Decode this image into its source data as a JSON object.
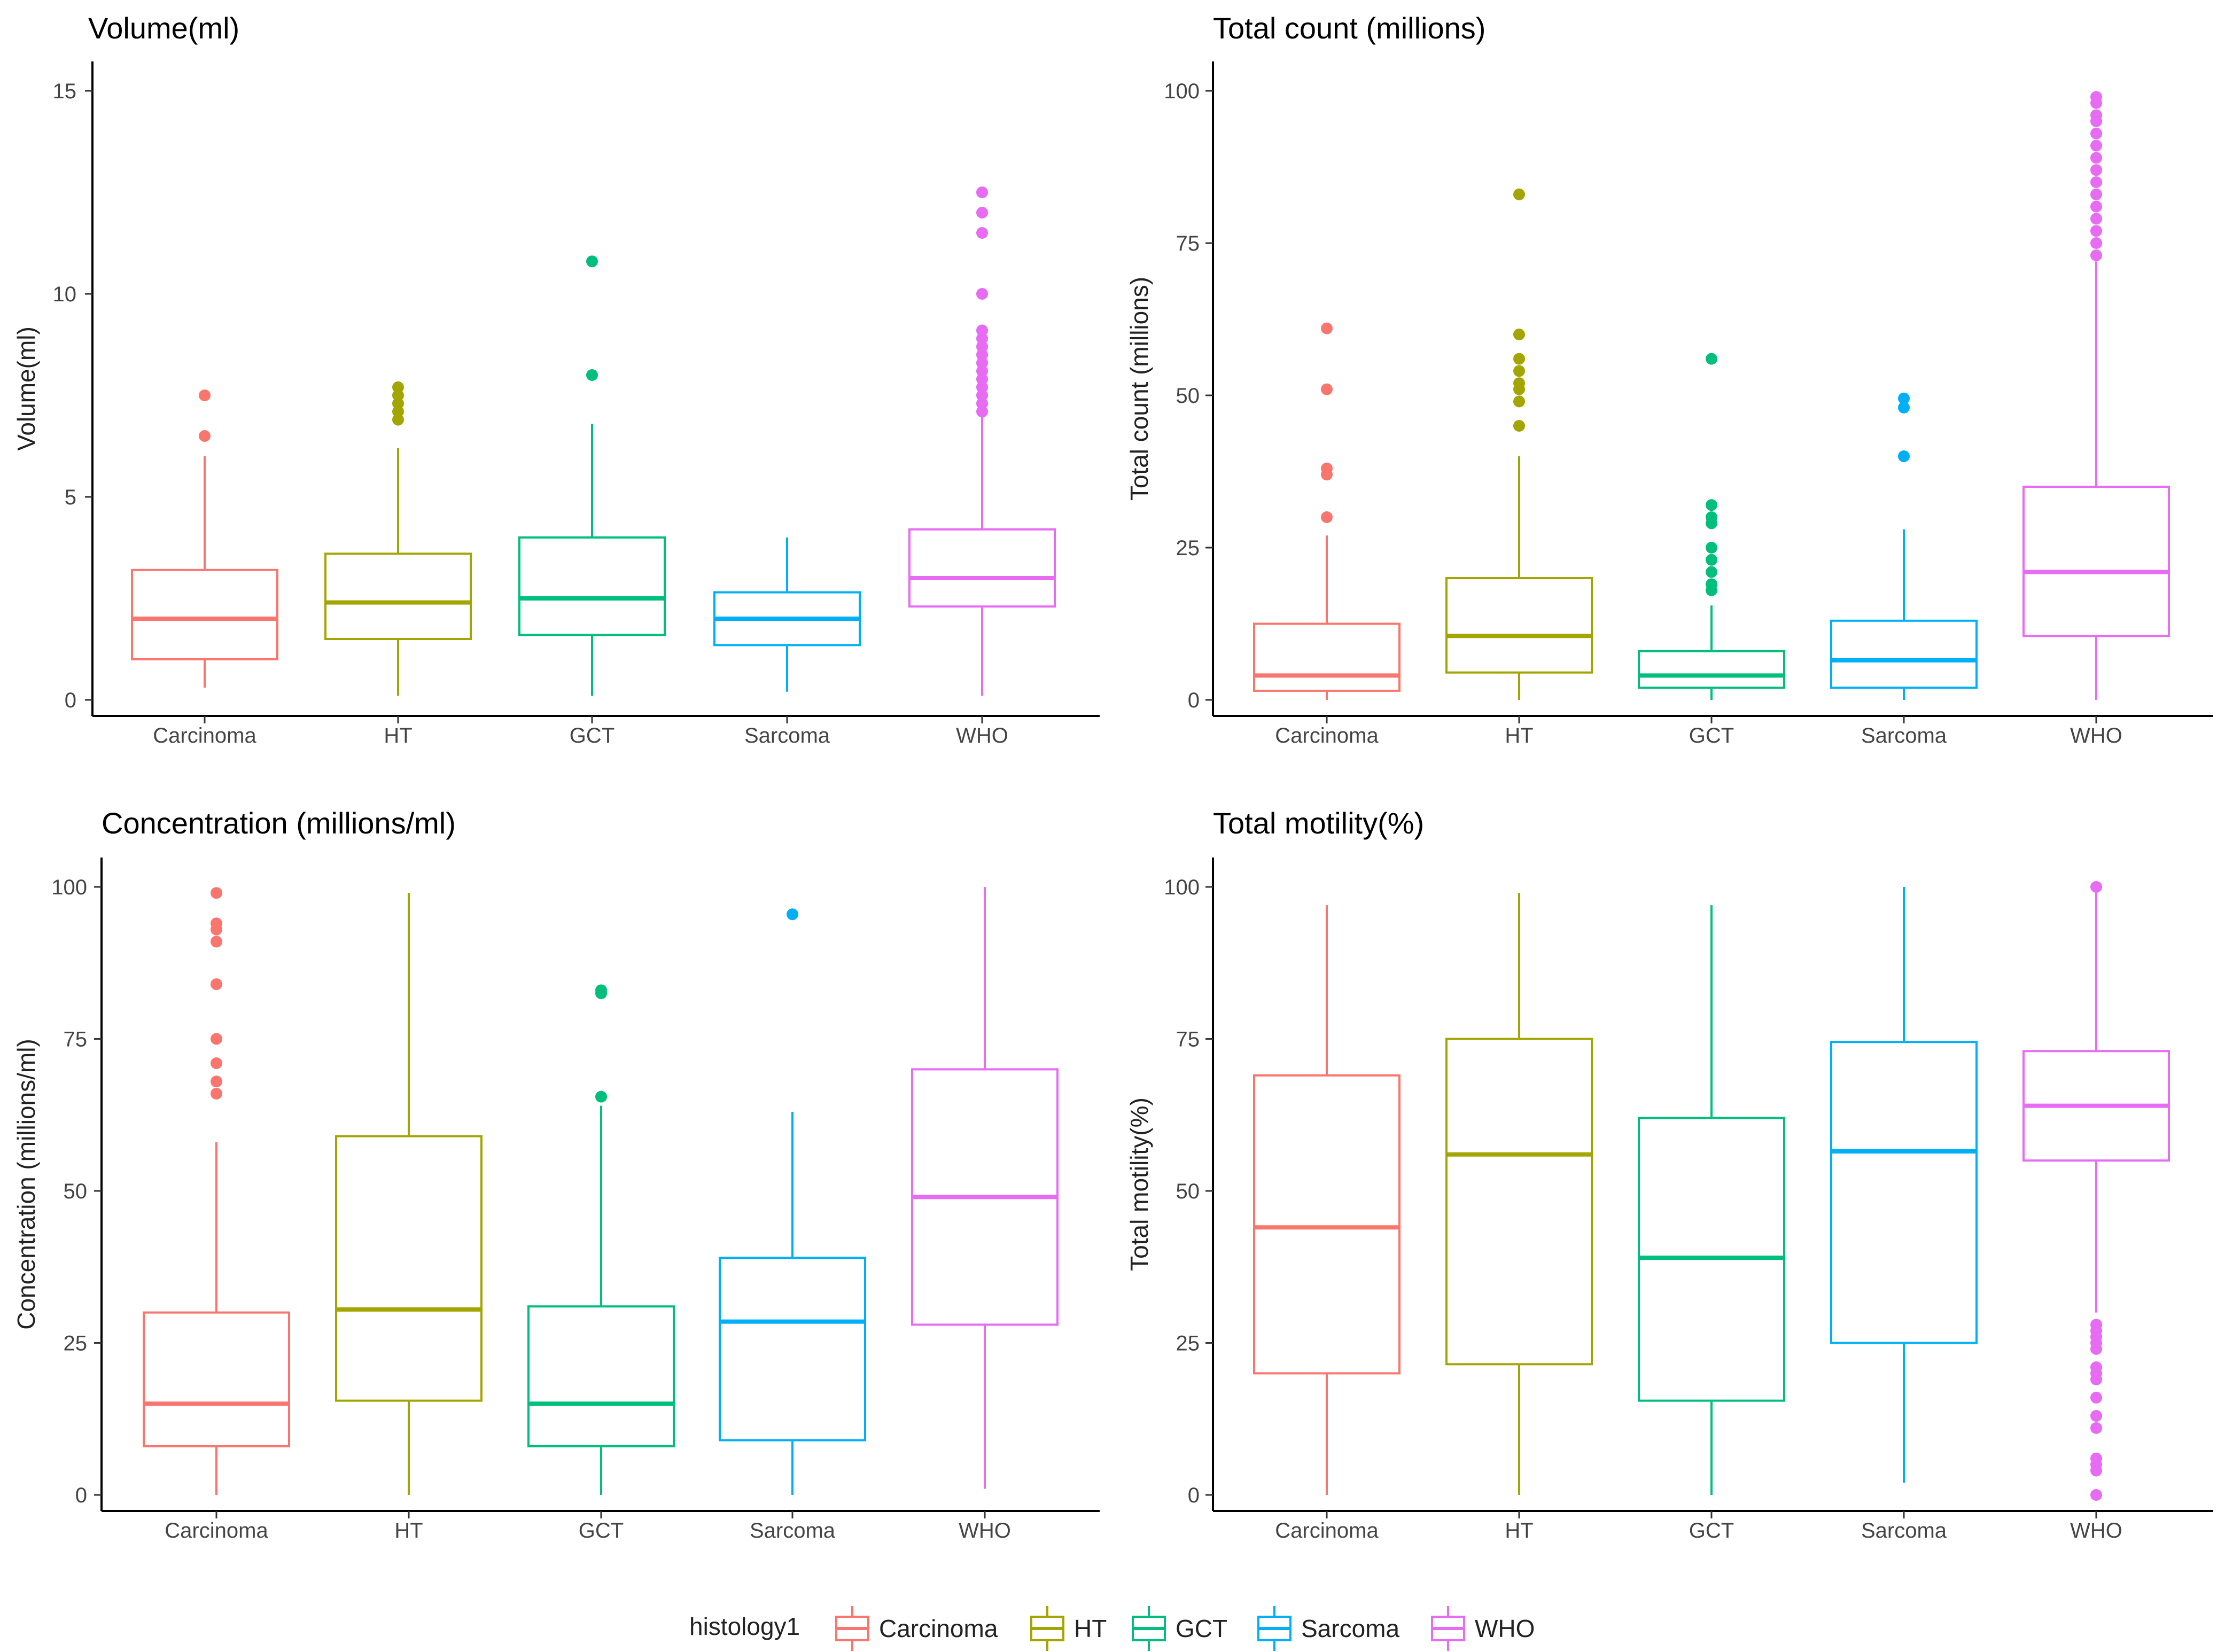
{
  "chart_data": [
    {
      "type": "box",
      "title": "Volume(ml)",
      "ylabel": "Volume(ml)",
      "xlabel": "",
      "ylim": [
        0,
        15.6
      ],
      "yticks": [
        0,
        5,
        10,
        15
      ],
      "categories": [
        "Carcinoma",
        "HT",
        "GCT",
        "Sarcoma",
        "WHO"
      ],
      "boxes": [
        {
          "group": "Carcinoma",
          "low": 0.3,
          "q1": 1.0,
          "median": 2.0,
          "q3": 3.2,
          "high": 6.0,
          "outliers": [
            6.5,
            7.5
          ]
        },
        {
          "group": "HT",
          "low": 0.1,
          "q1": 1.5,
          "median": 2.4,
          "q3": 3.6,
          "high": 6.2,
          "outliers": [
            6.9,
            7.1,
            7.3,
            7.5,
            7.7
          ]
        },
        {
          "group": "GCT",
          "low": 0.1,
          "q1": 1.6,
          "median": 2.5,
          "q3": 4.0,
          "high": 6.8,
          "outliers": [
            8.0,
            10.8
          ]
        },
        {
          "group": "Sarcoma",
          "low": 0.2,
          "q1": 1.35,
          "median": 2.0,
          "q3": 2.65,
          "high": 4.0,
          "outliers": []
        },
        {
          "group": "WHO",
          "low": 0.1,
          "q1": 2.3,
          "median": 3.0,
          "q3": 4.2,
          "high": 7.0,
          "outliers": [
            7.1,
            7.3,
            7.5,
            7.7,
            7.9,
            8.1,
            8.3,
            8.5,
            8.7,
            8.9,
            9.1,
            10.0,
            11.5,
            12.0,
            12.5
          ]
        }
      ]
    },
    {
      "type": "box",
      "title": "Total count (millions)",
      "ylabel": "Total count (millions)",
      "xlabel": "",
      "ylim": [
        0,
        104
      ],
      "yticks": [
        0,
        25,
        50,
        75,
        100
      ],
      "categories": [
        "Carcinoma",
        "HT",
        "GCT",
        "Sarcoma",
        "WHO"
      ],
      "boxes": [
        {
          "group": "Carcinoma",
          "low": 0,
          "q1": 1.5,
          "median": 4,
          "q3": 12.5,
          "high": 27,
          "outliers": [
            30,
            37,
            38,
            51,
            61
          ]
        },
        {
          "group": "HT",
          "low": 0,
          "q1": 4.5,
          "median": 10.5,
          "q3": 20,
          "high": 40,
          "outliers": [
            45,
            49,
            51,
            52,
            54,
            56,
            60,
            83
          ]
        },
        {
          "group": "GCT",
          "low": 0,
          "q1": 2,
          "median": 4,
          "q3": 8,
          "high": 15.5,
          "outliers": [
            18,
            19,
            21,
            23,
            25,
            29,
            30,
            32,
            56
          ]
        },
        {
          "group": "Sarcoma",
          "low": 0,
          "q1": 2,
          "median": 6.5,
          "q3": 13,
          "high": 28,
          "outliers": [
            40,
            48,
            49.5
          ]
        },
        {
          "group": "WHO",
          "low": 0,
          "q1": 10.5,
          "median": 21,
          "q3": 35,
          "high": 72,
          "outliers": [
            73,
            75,
            77,
            79,
            81,
            83,
            85,
            87,
            89,
            91,
            93,
            95,
            96,
            98,
            99
          ]
        }
      ]
    },
    {
      "type": "box",
      "title": "Concentration (millions/ml)",
      "ylabel": "Concentration (millions/ml)",
      "xlabel": "",
      "ylim": [
        0,
        104
      ],
      "yticks": [
        0,
        25,
        50,
        75,
        100
      ],
      "categories": [
        "Carcinoma",
        "HT",
        "GCT",
        "Sarcoma",
        "WHO"
      ],
      "boxes": [
        {
          "group": "Carcinoma",
          "low": 0,
          "q1": 8,
          "median": 15,
          "q3": 30,
          "high": 58,
          "outliers": [
            66,
            68,
            71,
            75,
            84,
            91,
            93,
            94,
            99
          ]
        },
        {
          "group": "HT",
          "low": 0,
          "q1": 15.5,
          "median": 30.5,
          "q3": 59,
          "high": 99,
          "outliers": []
        },
        {
          "group": "GCT",
          "low": 0,
          "q1": 8,
          "median": 15,
          "q3": 31,
          "high": 64,
          "outliers": [
            65.5,
            82.5,
            83
          ]
        },
        {
          "group": "Sarcoma",
          "low": 0,
          "q1": 9,
          "median": 28.5,
          "q3": 39,
          "high": 63,
          "outliers": [
            95.5
          ]
        },
        {
          "group": "WHO",
          "low": 1,
          "q1": 28,
          "median": 49,
          "q3": 70,
          "high": 100,
          "outliers": []
        }
      ]
    },
    {
      "type": "box",
      "title": "Total motility(%)",
      "ylabel": "Total motility(%)",
      "xlabel": "",
      "ylim": [
        0,
        104
      ],
      "yticks": [
        0,
        25,
        50,
        75,
        100
      ],
      "categories": [
        "Carcinoma",
        "HT",
        "GCT",
        "Sarcoma",
        "WHO"
      ],
      "boxes": [
        {
          "group": "Carcinoma",
          "low": 0,
          "q1": 20,
          "median": 44,
          "q3": 69,
          "high": 97,
          "outliers": []
        },
        {
          "group": "HT",
          "low": 0,
          "q1": 21.5,
          "median": 56,
          "q3": 75,
          "high": 99,
          "outliers": []
        },
        {
          "group": "GCT",
          "low": 0,
          "q1": 15.5,
          "median": 39,
          "q3": 62,
          "high": 97,
          "outliers": []
        },
        {
          "group": "Sarcoma",
          "low": 2,
          "q1": 25,
          "median": 56.5,
          "q3": 74.5,
          "high": 100,
          "outliers": []
        },
        {
          "group": "WHO",
          "low": 30,
          "q1": 55,
          "median": 64,
          "q3": 73,
          "high": 100,
          "outliers": [
            0,
            4,
            5,
            6,
            11,
            13,
            16,
            19,
            20,
            21,
            24,
            25,
            26,
            27,
            28,
            100
          ]
        }
      ]
    }
  ],
  "colors": {
    "Carcinoma": "#F8766D",
    "HT": "#A3A500",
    "GCT": "#00BF7D",
    "Sarcoma": "#00B0F6",
    "WHO": "#E76BF3",
    "axis": "#000000"
  },
  "legend": {
    "title": "histology1",
    "items": [
      "Carcinoma",
      "HT",
      "GCT",
      "Sarcoma",
      "WHO"
    ]
  }
}
